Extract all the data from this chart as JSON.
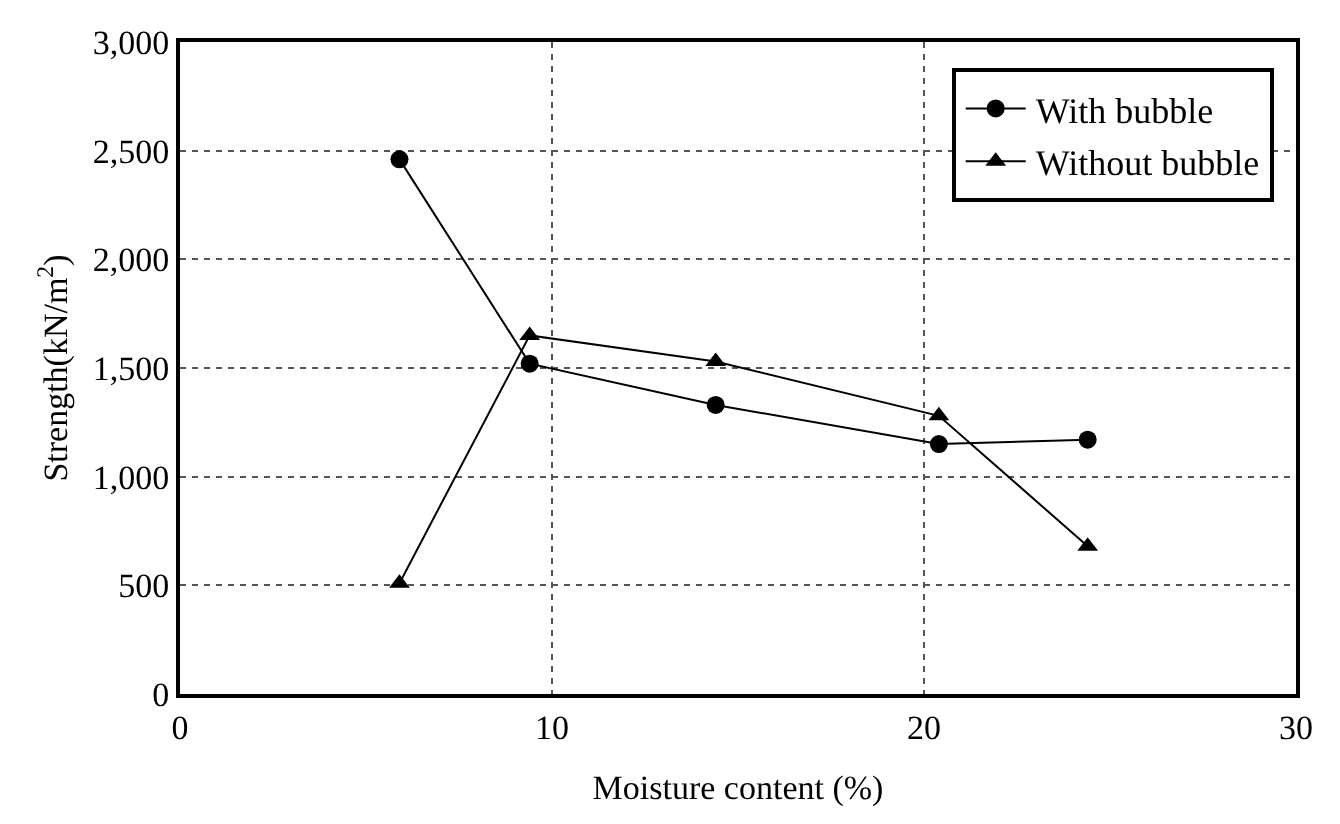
{
  "chart_data": {
    "type": "line",
    "xlabel": "Moisture content (%)",
    "ylabel": "Strength(kN/m$^{2}$)",
    "xlim": [
      0,
      30
    ],
    "xticks": [
      0,
      10,
      20,
      30
    ],
    "ylim": [
      0,
      3000
    ],
    "yticks": [
      0,
      500,
      {
        "value": 1000,
        "label": "1,000"
      },
      {
        "value": 1500,
        "label": "1,500"
      },
      {
        "value": 2000,
        "label": "2,000"
      },
      {
        "value": 2500,
        "label": "2,500"
      },
      {
        "value": 3000,
        "label": "3,000"
      }
    ],
    "grid": true,
    "legend": "top right",
    "line_style": "solid",
    "series": [
      {
        "name": "With bubble",
        "color": "#000000",
        "marker": "circle",
        "x": [
          5.9,
          9.4,
          14.4,
          20.4,
          24.4
        ],
        "values": [
          2460,
          1520,
          1330,
          1150,
          1170
        ]
      },
      {
        "name": "Without bubble",
        "color": "#000000",
        "marker": "triangle",
        "x": [
          5.9,
          9.4,
          14.4,
          20.4,
          24.4
        ],
        "values": [
          510,
          1650,
          1530,
          1280,
          680
        ]
      }
    ]
  }
}
